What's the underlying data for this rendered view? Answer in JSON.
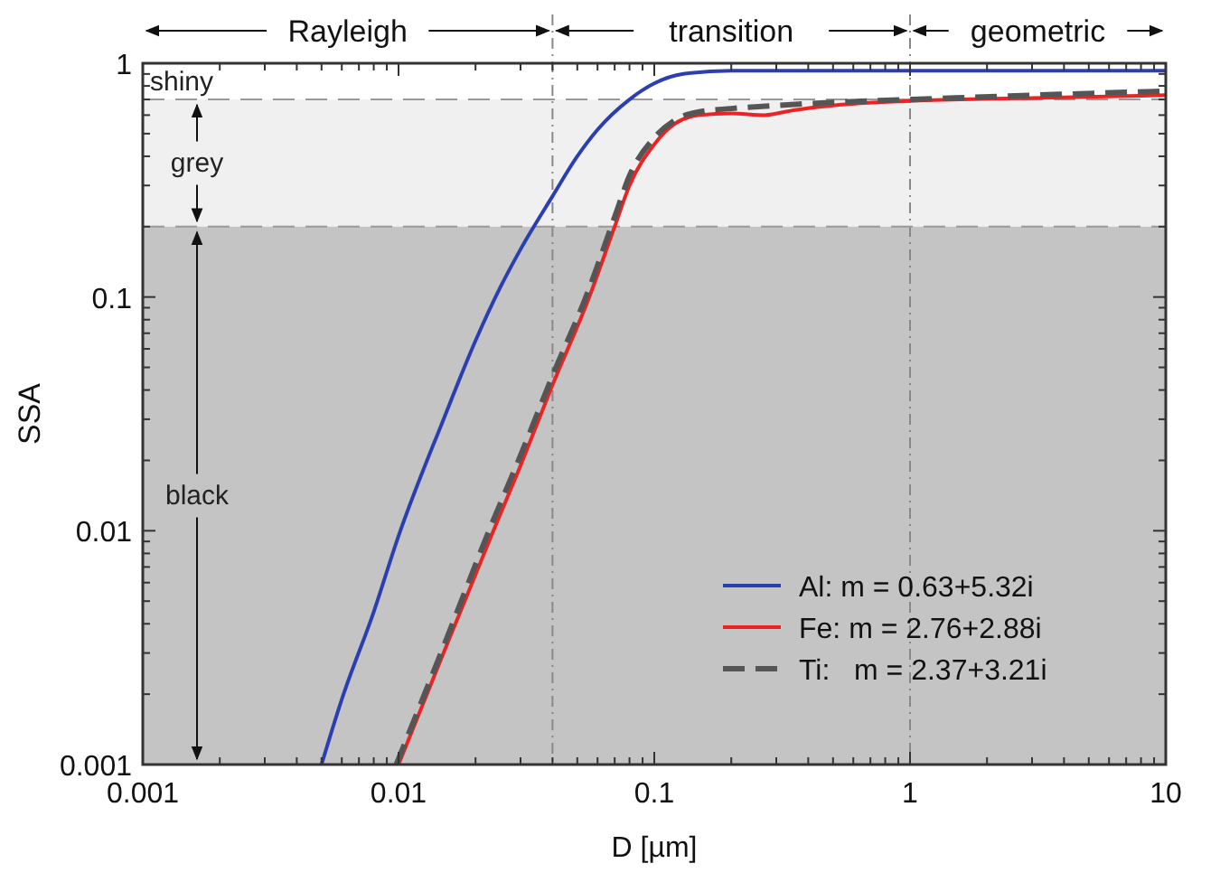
{
  "chart_data": {
    "type": "line",
    "xlabel": "D [µm]",
    "ylabel": "SSA",
    "log": "xy",
    "xlim": [
      0.001,
      10
    ],
    "ylim": [
      0.001,
      1
    ],
    "xticks": [
      "0.001",
      {
        "value": 0.002,
        "label": null
      },
      {
        "value": 0.003,
        "label": null
      },
      {
        "value": 0.004,
        "label": null
      },
      {
        "value": 0.005,
        "label": null
      },
      {
        "value": 0.006,
        "label": null
      },
      {
        "value": 0.007,
        "label": null
      },
      {
        "value": 0.008,
        "label": null
      },
      {
        "value": 0.009,
        "label": null
      },
      0.01,
      {
        "value": 0.02,
        "label": null
      },
      {
        "value": 0.03,
        "label": null
      },
      {
        "value": 0.04,
        "label": null
      },
      {
        "value": 0.05,
        "label": null
      },
      {
        "value": 0.06,
        "label": null
      },
      {
        "value": 0.07,
        "label": null
      },
      {
        "value": 0.08,
        "label": null
      },
      {
        "value": 0.09,
        "label": null
      },
      0.1,
      {
        "value": 0.2,
        "label": null
      },
      {
        "value": 0.3,
        "label": null
      },
      {
        "value": 0.4,
        "label": null
      },
      {
        "value": 0.5,
        "label": null
      },
      {
        "value": 0.6,
        "label": null
      },
      {
        "value": 0.7,
        "label": null
      },
      {
        "value": 0.8,
        "label": null
      },
      {
        "value": 0.9,
        "label": null
      },
      1,
      {
        "value": 2,
        "label": null
      },
      {
        "value": 3,
        "label": null
      },
      {
        "value": 4,
        "label": null
      },
      {
        "value": 5,
        "label": null
      },
      {
        "value": 6,
        "label": null
      },
      {
        "value": 7,
        "label": null
      },
      {
        "value": 8,
        "label": null
      },
      {
        "value": 9,
        "label": null
      },
      10
    ],
    "yticks": [
      {
        "value": 0.001,
        "label": "0.001"
      },
      {
        "value": 0.002,
        "label": null
      },
      {
        "value": 0.003,
        "label": null
      },
      {
        "value": 0.004,
        "label": null
      },
      {
        "value": 0.005,
        "label": null
      },
      {
        "value": 0.006,
        "label": null
      },
      {
        "value": 0.007,
        "label": null
      },
      {
        "value": 0.008,
        "label": null
      },
      {
        "value": 0.009,
        "label": null
      },
      0.01,
      {
        "value": 0.02,
        "label": null
      },
      {
        "value": 0.03,
        "label": null
      },
      {
        "value": 0.04,
        "label": null
      },
      {
        "value": 0.05,
        "label": null
      },
      {
        "value": 0.06,
        "label": null
      },
      {
        "value": 0.07,
        "label": null
      },
      {
        "value": 0.08,
        "label": null
      },
      {
        "value": 0.09,
        "label": null
      },
      0.1,
      {
        "value": 0.2,
        "label": null
      },
      {
        "value": 0.3,
        "label": null
      },
      {
        "value": 0.4,
        "label": null
      },
      {
        "value": 0.5,
        "label": null
      },
      {
        "value": 0.6,
        "label": null
      },
      {
        "value": 0.7,
        "label": null
      },
      {
        "value": 0.8,
        "label": null
      },
      {
        "value": 0.9,
        "label": null
      },
      1
    ],
    "legend": "bottom right",
    "annotations": [
      "Rayleigh",
      "transition",
      "geometric",
      "shiny"
    ],
    "bands": [
      {
        "axis": "y",
        "from": 0.2,
        "to": 0.7,
        "label": "grey",
        "color": "#f0f0f0"
      },
      {
        "axis": "y",
        "from": 0.001,
        "to": 0.2,
        "label": "black",
        "color": "#c4c4c4"
      }
    ],
    "ref_lines": [
      {
        "axis": "x",
        "value": 0.04,
        "line_style": "dashdot",
        "color": "#888888"
      },
      {
        "axis": "x",
        "value": 1,
        "line_style": "dashdot",
        "color": "#888888"
      },
      {
        "axis": "y",
        "value": 0.7,
        "line_style": "dashed",
        "color": "#999999"
      },
      {
        "axis": "y",
        "value": 0.2,
        "line_style": "dashed",
        "color": "#999999"
      }
    ],
    "series": [
      {
        "name": "Al: m = 0.63+5.32i",
        "color": "#2b3fb0",
        "line_style": "solid",
        "x": [
          0.005,
          0.006,
          0.008,
          0.01,
          0.015,
          0.02,
          0.025,
          0.03,
          0.04,
          0.05,
          0.06,
          0.08,
          0.1,
          0.13,
          0.2,
          0.3,
          1,
          10
        ],
        "values": [
          0.001,
          0.0019,
          0.0045,
          0.0095,
          0.03,
          0.065,
          0.11,
          0.16,
          0.27,
          0.4,
          0.52,
          0.7,
          0.82,
          0.9,
          0.93,
          0.93,
          0.93,
          0.93
        ]
      },
      {
        "name": "Fe: m = 2.76+2.88i",
        "color": "#ee2222",
        "line_style": "solid",
        "x": [
          0.01,
          0.015,
          0.0235,
          0.03,
          0.04,
          0.0557,
          0.07,
          0.08,
          0.1,
          0.12,
          0.15,
          0.2,
          0.27,
          0.35,
          0.5,
          1,
          3,
          10
        ],
        "values": [
          0.001,
          0.003,
          0.01,
          0.019,
          0.042,
          0.1,
          0.2,
          0.3,
          0.45,
          0.55,
          0.6,
          0.61,
          0.6,
          0.63,
          0.66,
          0.69,
          0.71,
          0.73
        ]
      },
      {
        "name": "Ti:   m = 2.37+3.21i",
        "color": "#555555",
        "line_style": "dashed",
        "x": [
          0.0098,
          0.015,
          0.023,
          0.03,
          0.04,
          0.055,
          0.07,
          0.08,
          0.1,
          0.12,
          0.15,
          0.2,
          0.3,
          0.5,
          1,
          3,
          10
        ],
        "values": [
          0.001,
          0.0032,
          0.0105,
          0.021,
          0.046,
          0.105,
          0.22,
          0.33,
          0.48,
          0.57,
          0.62,
          0.64,
          0.66,
          0.68,
          0.7,
          0.73,
          0.76
        ]
      }
    ]
  }
}
